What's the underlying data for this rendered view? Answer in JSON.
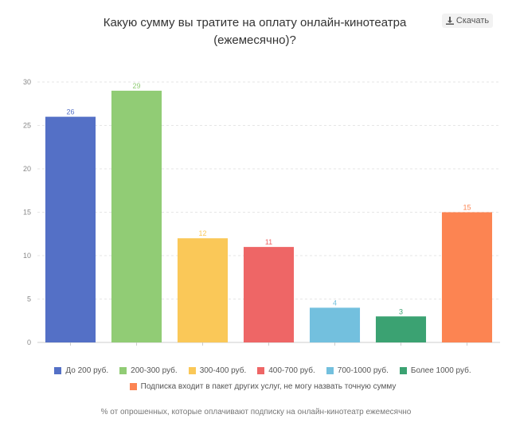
{
  "download_label": "Скачать",
  "footnote": "% от опрошенных, которые оплачивают подписку на онлайн-кинотеатр ежемесячно",
  "chart_data": {
    "type": "bar",
    "title": "Какую сумму вы тратите на оплату онлайн-кинотеатра (ежемесячно)?",
    "title_lines": [
      "Какую сумму вы тратите на оплату онлайн-кинотеатра",
      "(ежемесячно)?"
    ],
    "categories": [
      "До 200 руб.",
      "200-300 руб.",
      "300-400 руб.",
      "400-700 руб.",
      "700-1000 руб.",
      "Более 1000 руб.",
      "Подписка входит в пакет других услуг, не могу назвать точную сумму"
    ],
    "values": [
      26,
      29,
      12,
      11,
      4,
      3,
      15
    ],
    "colors": [
      "#5470c6",
      "#91cc75",
      "#fac858",
      "#ee6666",
      "#73c0de",
      "#3ba272",
      "#fc8452"
    ],
    "yticks": [
      0,
      5,
      10,
      15,
      20,
      25,
      30
    ],
    "ylim": [
      0,
      30
    ],
    "grid": true,
    "legend_position": "bottom"
  }
}
